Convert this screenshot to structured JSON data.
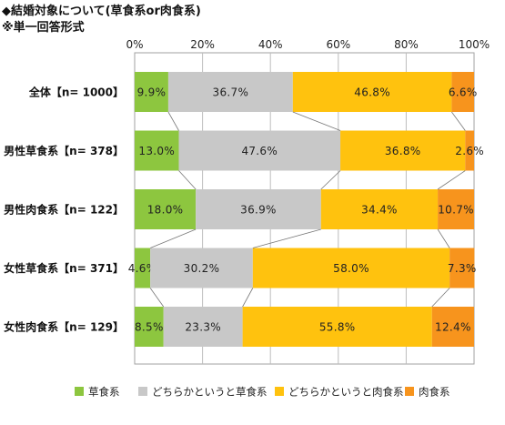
{
  "header": {
    "title": "◆結婚対象について(草食系or肉食系)",
    "subtitle": "※単一回答形式"
  },
  "chart_data": {
    "type": "bar",
    "orientation": "horizontal-stacked-100",
    "title": "◆結婚対象について(草食系or肉食系)",
    "subtitle": "※単一回答形式",
    "xlim": [
      0,
      100
    ],
    "x_ticks": [
      "0%",
      "20%",
      "40%",
      "60%",
      "80%",
      "100%"
    ],
    "grid": true,
    "legend_position": "bottom",
    "categories": [
      "全体【n= 1000】",
      "男性草食系【n= 378】",
      "男性肉食系【n= 122】",
      "女性草食系【n= 371】",
      "女性肉食系【n= 129】"
    ],
    "series": [
      {
        "name": "草食系",
        "color": "#8dc63f",
        "values": [
          9.9,
          13.0,
          18.0,
          4.6,
          8.5
        ]
      },
      {
        "name": "どちらかというと草食系",
        "color": "#c8c8c8",
        "values": [
          36.7,
          47.6,
          36.9,
          30.2,
          23.3
        ]
      },
      {
        "name": "どちらかというと肉食系",
        "color": "#ffc20e",
        "values": [
          46.8,
          36.8,
          34.4,
          58.0,
          55.8
        ]
      },
      {
        "name": "肉食系",
        "color": "#f7941d",
        "values": [
          6.6,
          2.6,
          10.7,
          7.3,
          12.4
        ]
      }
    ]
  }
}
